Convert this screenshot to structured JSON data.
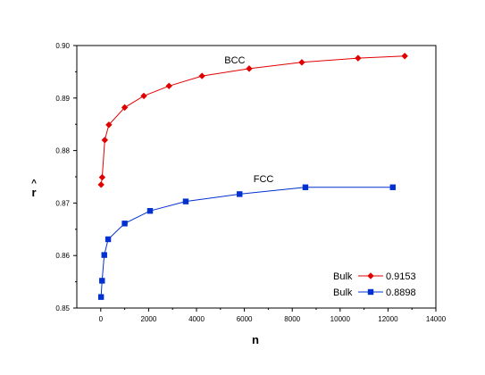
{
  "chart_data": {
    "type": "scatter",
    "title": "",
    "xlabel": "n",
    "ylabel": "r",
    "ylabel_accent": "^",
    "xlim": [
      -1000,
      14000
    ],
    "ylim": [
      0.85,
      0.9
    ],
    "x_ticks": [
      0,
      2000,
      4000,
      6000,
      8000,
      10000,
      12000,
      14000
    ],
    "y_ticks": [
      0.85,
      0.86,
      0.87,
      0.88,
      0.89,
      0.9
    ],
    "x_tick_labels": [
      "0",
      "2000",
      "4000",
      "6000",
      "8000",
      "10000",
      "12000",
      "14000"
    ],
    "y_tick_labels": [
      "0.85",
      "0.86",
      "0.87",
      "0.88",
      "0.89",
      "0.90"
    ],
    "grid": false,
    "legend_position": "bottom-right",
    "series": [
      {
        "name": "0.9153",
        "legend_prefix": "Bulk",
        "annotation": "BCC",
        "color": "#e00000",
        "marker": "diamond",
        "x": [
          15,
          59,
          169,
          339,
          1000,
          1800,
          2850,
          4230,
          6200,
          8400,
          10750,
          12700
        ],
        "y": [
          0.8735,
          0.8749,
          0.882,
          0.8849,
          0.8882,
          0.8904,
          0.8923,
          0.8942,
          0.8956,
          0.8968,
          0.8976,
          0.898
        ]
      },
      {
        "name": "0.8898",
        "legend_prefix": "Bulk",
        "annotation": "FCC",
        "color": "#0030d0",
        "marker": "square",
        "x": [
          13,
          55,
          147,
          309,
          1000,
          2060,
          3550,
          5800,
          8550,
          12200
        ],
        "y": [
          0.8521,
          0.8552,
          0.8601,
          0.8631,
          0.8661,
          0.8685,
          0.8703,
          0.8717,
          0.873,
          0.873
        ]
      }
    ]
  }
}
